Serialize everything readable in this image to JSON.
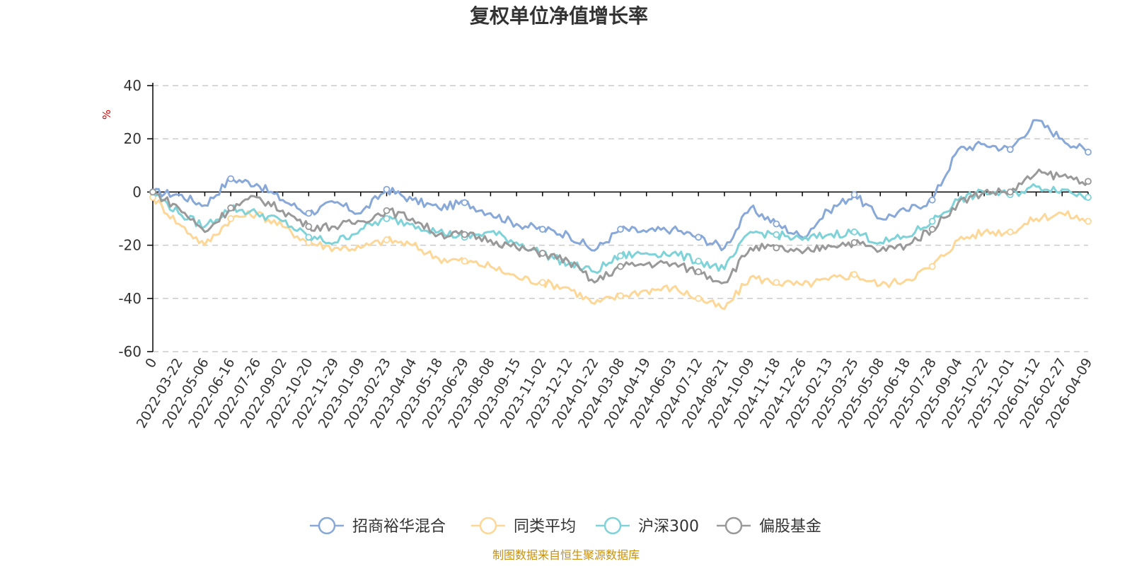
{
  "chart_data": {
    "type": "line",
    "title": "复权单位净值增长率",
    "ylabel": "%",
    "xlabel": "",
    "ylim": [
      -60,
      40
    ],
    "yticks": [
      40,
      20,
      0,
      -20,
      -40,
      -60
    ],
    "grid": true,
    "legend_position": "bottom-center",
    "categories": [
      "0",
      "2022-03-22",
      "2022-05-06",
      "2022-06-16",
      "2022-07-26",
      "2022-09-02",
      "2022-10-20",
      "2022-11-29",
      "2023-01-09",
      "2023-02-23",
      "2023-04-04",
      "2023-05-18",
      "2023-06-29",
      "2023-08-08",
      "2023-09-15",
      "2023-11-02",
      "2023-12-12",
      "2024-01-22",
      "2024-03-08",
      "2024-04-19",
      "2024-06-03",
      "2024-07-12",
      "2024-08-21",
      "2024-10-09",
      "2024-11-18",
      "2024-12-26",
      "2025-02-13",
      "2025-03-25",
      "2025-05-08",
      "2025-06-18",
      "2025-07-28",
      "2025-09-04",
      "2025-10-22",
      "2025-12-01",
      "2026-01-12",
      "2026-02-27",
      "2026-04-09"
    ],
    "series": [
      {
        "name": "招商裕华混合",
        "color": "#88a8d8",
        "values": [
          0,
          -1,
          -5,
          5,
          3,
          -3,
          -8,
          -4,
          -8,
          1,
          -3,
          -6,
          -4,
          -8,
          -12,
          -14,
          -16,
          -22,
          -14,
          -15,
          -14,
          -17,
          -21,
          -6,
          -12,
          -17,
          -7,
          -1,
          -10,
          -7,
          -3,
          16,
          18,
          16,
          27,
          20,
          15
        ]
      },
      {
        "name": "同类平均",
        "color": "#fcd797",
        "values": [
          -2,
          -12,
          -20,
          -10,
          -8,
          -13,
          -19,
          -21,
          -21,
          -18,
          -20,
          -25,
          -26,
          -28,
          -32,
          -34,
          -36,
          -42,
          -39,
          -37,
          -36,
          -40,
          -44,
          -32,
          -34,
          -35,
          -33,
          -31,
          -35,
          -33,
          -28,
          -18,
          -15,
          -15,
          -10,
          -8,
          -11
        ]
      },
      {
        "name": "沪深300",
        "color": "#7fd3d8",
        "values": [
          0,
          -8,
          -13,
          -6,
          -8,
          -11,
          -17,
          -19,
          -14,
          -10,
          -12,
          -15,
          -17,
          -15,
          -19,
          -23,
          -27,
          -30,
          -24,
          -23,
          -23,
          -26,
          -29,
          -15,
          -16,
          -18,
          -16,
          -15,
          -19,
          -17,
          -11,
          -3,
          0,
          -1,
          2,
          1,
          -2
        ]
      },
      {
        "name": "偏股基金",
        "color": "#999999",
        "values": [
          0,
          -6,
          -15,
          -6,
          -2,
          -7,
          -13,
          -13,
          -11,
          -7,
          -10,
          -16,
          -16,
          -18,
          -21,
          -23,
          -26,
          -34,
          -28,
          -27,
          -27,
          -30,
          -34,
          -21,
          -21,
          -23,
          -20,
          -19,
          -22,
          -20,
          -14,
          -4,
          0,
          0,
          7,
          6,
          4
        ]
      }
    ]
  },
  "source_text": "制图数据来自恒生聚源数据库"
}
